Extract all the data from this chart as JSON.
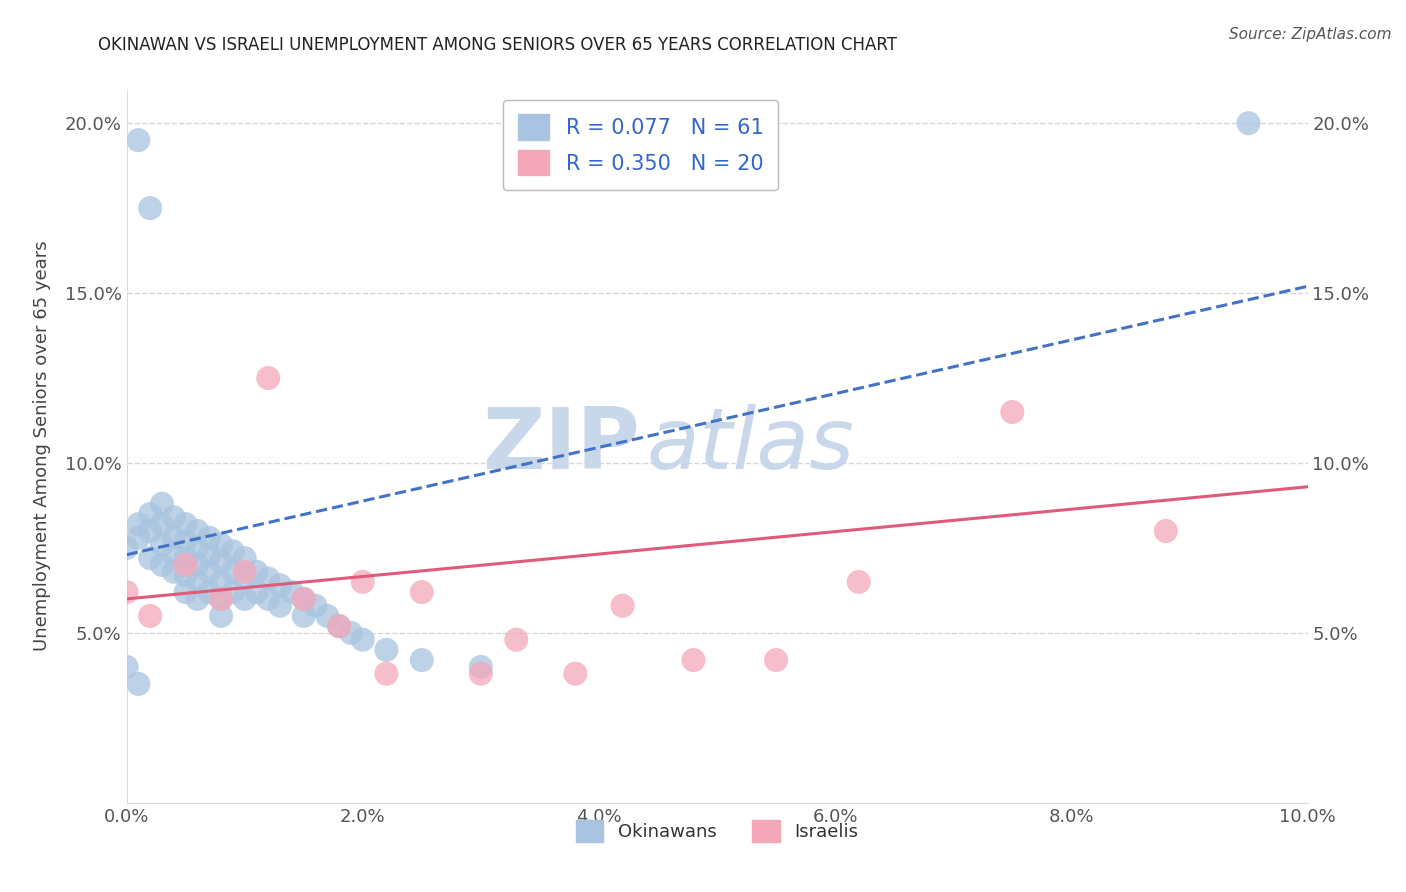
{
  "title": "OKINAWAN VS ISRAELI UNEMPLOYMENT AMONG SENIORS OVER 65 YEARS CORRELATION CHART",
  "source": "Source: ZipAtlas.com",
  "ylabel": "Unemployment Among Seniors over 65 years",
  "xlabel": "",
  "xlim": [
    0.0,
    0.1
  ],
  "ylim": [
    0.0,
    0.21
  ],
  "xticks": [
    0.0,
    0.02,
    0.04,
    0.06,
    0.08,
    0.1
  ],
  "xtick_labels": [
    "0.0%",
    "2.0%",
    "4.0%",
    "6.0%",
    "8.0%",
    "10.0%"
  ],
  "yticks": [
    0.0,
    0.05,
    0.1,
    0.15,
    0.2
  ],
  "ytick_labels": [
    "",
    "5.0%",
    "10.0%",
    "15.0%",
    "20.0%"
  ],
  "legend_r1": "R = 0.077",
  "legend_n1": "N = 61",
  "legend_r2": "R = 0.350",
  "legend_n2": "N = 20",
  "okinawan_color": "#a8c4e0",
  "israeli_color": "#f4a7b9",
  "okinawan_line_color": "#4472c4",
  "israeli_line_color": "#e05a7a",
  "watermark_zip": "ZIP",
  "watermark_atlas": "atlas",
  "watermark_color": "#c8d8ea",
  "okinawan_x": [
    0.001,
    0.002,
    0.0,
    0.001,
    0.001,
    0.002,
    0.002,
    0.002,
    0.003,
    0.003,
    0.003,
    0.003,
    0.004,
    0.004,
    0.004,
    0.004,
    0.005,
    0.005,
    0.005,
    0.005,
    0.005,
    0.006,
    0.006,
    0.006,
    0.006,
    0.006,
    0.007,
    0.007,
    0.007,
    0.007,
    0.008,
    0.008,
    0.008,
    0.008,
    0.008,
    0.009,
    0.009,
    0.009,
    0.01,
    0.01,
    0.01,
    0.011,
    0.011,
    0.012,
    0.012,
    0.013,
    0.013,
    0.014,
    0.015,
    0.015,
    0.016,
    0.017,
    0.018,
    0.019,
    0.02,
    0.022,
    0.025,
    0.03,
    0.0,
    0.001,
    0.095
  ],
  "okinawan_y": [
    0.195,
    0.175,
    0.075,
    0.082,
    0.078,
    0.085,
    0.08,
    0.072,
    0.088,
    0.082,
    0.076,
    0.07,
    0.084,
    0.078,
    0.073,
    0.068,
    0.082,
    0.077,
    0.072,
    0.067,
    0.062,
    0.08,
    0.075,
    0.07,
    0.065,
    0.06,
    0.078,
    0.073,
    0.068,
    0.062,
    0.076,
    0.071,
    0.065,
    0.06,
    0.055,
    0.074,
    0.068,
    0.062,
    0.072,
    0.066,
    0.06,
    0.068,
    0.062,
    0.066,
    0.06,
    0.064,
    0.058,
    0.062,
    0.06,
    0.055,
    0.058,
    0.055,
    0.052,
    0.05,
    0.048,
    0.045,
    0.042,
    0.04,
    0.04,
    0.035,
    0.2
  ],
  "israeli_x": [
    0.0,
    0.002,
    0.005,
    0.008,
    0.01,
    0.012,
    0.015,
    0.018,
    0.02,
    0.022,
    0.025,
    0.03,
    0.033,
    0.038,
    0.042,
    0.048,
    0.055,
    0.062,
    0.075,
    0.088
  ],
  "israeli_y": [
    0.062,
    0.055,
    0.07,
    0.06,
    0.068,
    0.125,
    0.06,
    0.052,
    0.065,
    0.038,
    0.062,
    0.038,
    0.048,
    0.038,
    0.058,
    0.042,
    0.042,
    0.065,
    0.115,
    0.08
  ],
  "trend_ok_x0": 0.0,
  "trend_ok_x1": 0.1,
  "trend_ok_y0": 0.073,
  "trend_ok_y1": 0.152,
  "trend_is_x0": 0.0,
  "trend_is_x1": 0.1,
  "trend_is_y0": 0.06,
  "trend_is_y1": 0.093
}
